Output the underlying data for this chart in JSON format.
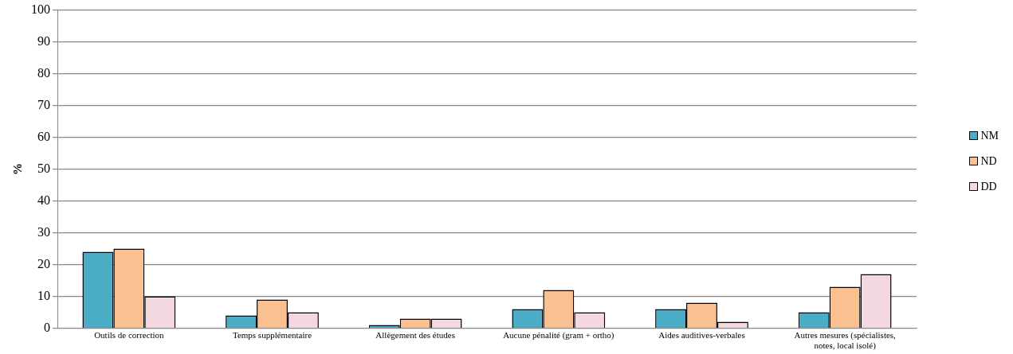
{
  "chart_data": {
    "type": "bar",
    "ylabel": "%",
    "categories": [
      "Outils de correction",
      "Temps supplémentaire",
      "Allègement des études",
      "Aucune pénalité (gram + ortho)",
      "Aides auditives-verbales",
      "Autres mesures (spécialistes, notes, local isolé)"
    ],
    "series": [
      {
        "name": "NM",
        "color": "#4bacc6",
        "values": [
          24,
          4,
          1,
          6,
          6,
          5
        ]
      },
      {
        "name": "ND",
        "color": "#fac090",
        "values": [
          25,
          9,
          3,
          12,
          8,
          13
        ]
      },
      {
        "name": "DD",
        "color": "#f3d9df",
        "values": [
          10,
          5,
          3,
          5,
          2,
          17
        ]
      }
    ],
    "ylim": [
      0,
      100
    ],
    "yticks": [
      0,
      10,
      20,
      30,
      40,
      50,
      60,
      70,
      80,
      90,
      100
    ],
    "grid": "y",
    "legend": "right"
  }
}
